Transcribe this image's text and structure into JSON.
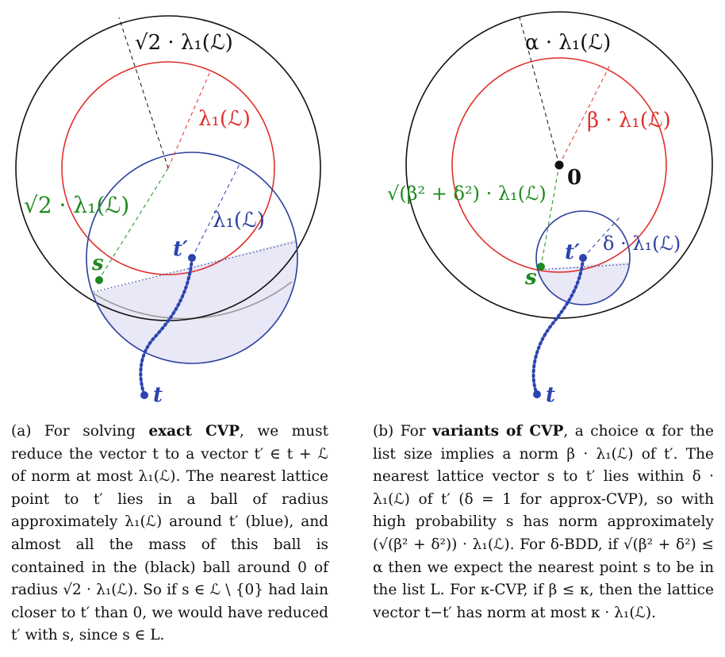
{
  "panel_a": {
    "label_sqrt2_black": "√2 · λ₁(ℒ)",
    "label_lambda_red": "λ₁(ℒ)",
    "label_sqrt2_green": "√2 · λ₁(ℒ)",
    "label_lambda_blue": "λ₁(ℒ)",
    "label_s": "s",
    "label_tprime": "t′",
    "label_t": "t"
  },
  "panel_b": {
    "label_alpha": "α · λ₁(ℒ)",
    "label_beta": "β · λ₁(ℒ)",
    "label_zero": "0",
    "label_green": "√(β² + δ²) · λ₁(ℒ)",
    "label_delta": "δ · λ₁(ℒ)",
    "label_s": "s",
    "label_tprime": "t′",
    "label_t": "t"
  },
  "colors": {
    "black_circle": "#111111",
    "red_circle": "#e0302a",
    "blue_circle": "#2b3f9e",
    "blue_fill": "#e8e8f6",
    "green": "#1e8a1e",
    "point_blue": "#2b44b0"
  },
  "caption_a": {
    "p1": "(a) For solving ",
    "b1": "exact CVP",
    "p2": ", we must reduce the vector t to a vector t′ ∈ t + ℒ of norm at most λ₁(ℒ). The nearest lattice point to t′ lies in a ball of radius approximately λ₁(ℒ) around t′ (blue), and almost all the mass of this ball is contained in the (black) ball around 0 of radius √2 · λ₁(ℒ). So if s ∈ ℒ \\ {0} had lain closer to t′ than 0, we would have reduced t′ with s, since s ∈ L."
  },
  "caption_b": {
    "p1": "(b) For ",
    "b1": "variants of CVP",
    "p2": ", a choice α for the list size implies a norm β · λ₁(ℒ) of t′. The nearest lattice vector s to t′ lies within δ · λ₁(ℒ) of t′ (δ = 1 for approx-CVP), so with high probability s has norm approximately (√(β² + δ²)) · λ₁(ℒ). For δ-BDD, if √(β² + δ²) ≤ α then we expect the nearest point s to be in the list L. For κ-CVP, if β ≤ κ, then the lattice vector t−t′ has norm at most κ · λ₁(ℒ)."
  }
}
